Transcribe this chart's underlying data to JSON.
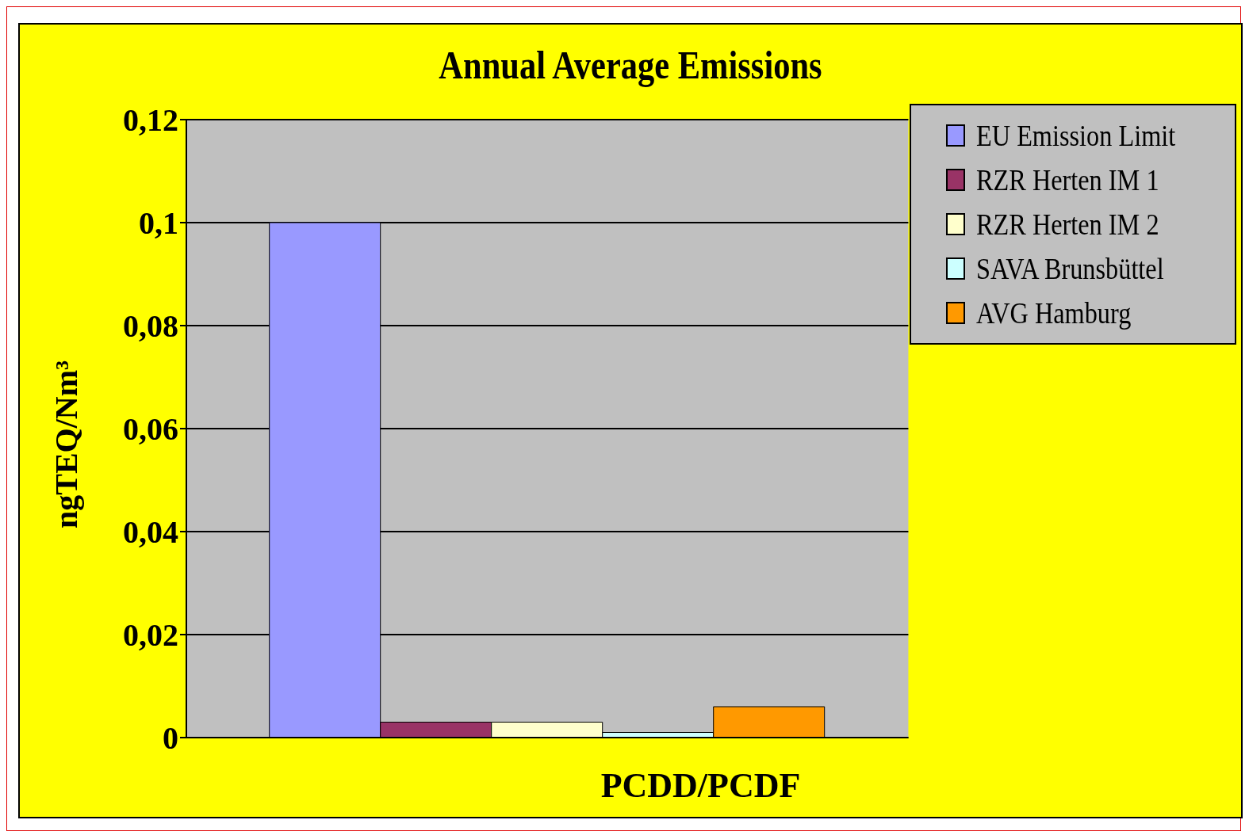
{
  "chart_data": {
    "type": "bar",
    "title": "Annual Average Emissions",
    "xlabel": "PCDD/PCDF",
    "ylabel": "ngTEQ/Nm³",
    "categories": [
      null
    ],
    "series": [
      {
        "name": "EU Emission Limit",
        "color": "#9999ff",
        "values": [
          0.1
        ]
      },
      {
        "name": "RZR Herten IM 1",
        "color": "#993366",
        "values": [
          0.003
        ]
      },
      {
        "name": "RZR Herten IM 2",
        "color": "#ffffcc",
        "values": [
          0.003
        ]
      },
      {
        "name": "SAVA Brunsbüttel",
        "color": "#ccffff",
        "values": [
          0.001
        ]
      },
      {
        "name": "AVG Hamburg",
        "color": "#ff9900",
        "values": [
          0.006
        ]
      }
    ],
    "ylim": [
      0,
      0.12
    ],
    "yticks": [
      0,
      {
        "value": 0.02,
        "label": "0,02"
      },
      {
        "value": 0.04,
        "label": "0,04"
      },
      {
        "value": 0.06,
        "label": "0,06"
      },
      {
        "value": 0.08,
        "label": "0,08"
      },
      {
        "value": 0.1,
        "label": "0,1"
      },
      {
        "value": 0.12,
        "label": "0,12"
      }
    ],
    "grid": "y",
    "legend": "top right"
  }
}
